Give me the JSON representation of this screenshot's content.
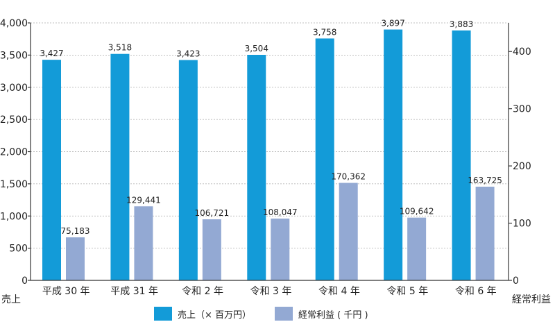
{
  "chart_data": {
    "type": "bar",
    "categories": [
      "平成 30 年",
      "平成 31 年",
      "令和 2 年",
      "令和 3 年",
      "令和 4 年",
      "令和 5 年",
      "令和 6 年"
    ],
    "series": [
      {
        "name": "売上（× 百万円）",
        "axis": "left",
        "color": "#139bd8",
        "values": [
          3427,
          3518,
          3423,
          3504,
          3758,
          3897,
          3883
        ],
        "labels": [
          "3,427",
          "3,518",
          "3,423",
          "3,504",
          "3,758",
          "3,897",
          "3,883"
        ]
      },
      {
        "name": "経常利益 ( 千円 )",
        "axis": "right",
        "color": "#93a9d3",
        "values": [
          75183,
          129441,
          106721,
          108047,
          170362,
          109642,
          163725
        ],
        "labels": [
          "75,183",
          "129,441",
          "106,721",
          "108,047",
          "170,362",
          "109,642",
          "163,725"
        ]
      }
    ],
    "y_left": {
      "label": "売上",
      "ylim": [
        0,
        4000
      ],
      "ticks": [
        0,
        500,
        1000,
        1500,
        2000,
        2500,
        3000,
        3500,
        4000
      ],
      "tick_labels": [
        "0",
        "500",
        "1,000",
        "1,500",
        "2,000",
        "2,500",
        "3,000",
        "3,500",
        "4,000"
      ]
    },
    "y_right": {
      "label": "経常利益",
      "ylim": [
        0,
        450000
      ],
      "ticks": [
        0,
        100000,
        200000,
        300000,
        400000
      ],
      "tick_labels": [
        "0",
        "100",
        "200",
        "300",
        "400"
      ]
    },
    "grid": true,
    "legend_position": "bottom"
  }
}
